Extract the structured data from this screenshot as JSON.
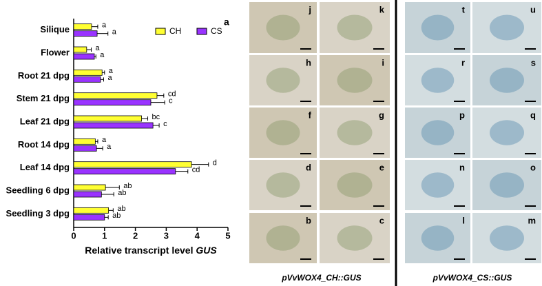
{
  "chart_data": {
    "type": "hbar",
    "panel_label": "a",
    "xlabel": "Relative transcript level",
    "xlabel_gene": "GUS",
    "categories": [
      "Silique",
      "Flower",
      "Root 21 dpg",
      "Stem 21 dpg",
      "Leaf 21 dpg",
      "Root 14 dpg",
      "Leaf 14 dpg",
      "Seedling 6 dpg",
      "Seedling 3 dpg"
    ],
    "series": [
      {
        "name": "CH",
        "color": "#ffff33",
        "values": [
          0.58,
          0.42,
          0.92,
          2.7,
          2.2,
          0.7,
          3.82,
          1.03,
          1.13
        ],
        "errors": [
          0.2,
          0.15,
          0.08,
          0.22,
          0.2,
          0.08,
          0.55,
          0.45,
          0.15
        ],
        "significance": [
          "a",
          "a",
          "a",
          "cd",
          "bc",
          "a",
          "d",
          "ab",
          "ab"
        ]
      },
      {
        "name": "CS",
        "color": "#9933ff",
        "values": [
          0.76,
          0.67,
          0.87,
          2.5,
          2.57,
          0.74,
          3.3,
          0.9,
          1.0
        ],
        "errors": [
          0.35,
          0.05,
          0.1,
          0.45,
          0.2,
          0.2,
          0.4,
          0.4,
          0.12
        ],
        "significance": [
          "a",
          "a",
          "a",
          "c",
          "c",
          "a",
          "cd",
          "ab",
          "ab"
        ]
      }
    ],
    "xlim": [
      0,
      5
    ],
    "xticks": [
      0,
      1,
      2,
      3,
      4,
      5
    ]
  },
  "photos": {
    "left": {
      "caption": "pVvWOX4_CH::GUS",
      "letters": [
        "j",
        "k",
        "h",
        "i",
        "f",
        "g",
        "d",
        "e",
        "b",
        "c"
      ]
    },
    "right": {
      "caption": "pVvWOX4_CS::GUS",
      "letters": [
        "t",
        "u",
        "r",
        "s",
        "p",
        "q",
        "n",
        "o",
        "l",
        "m"
      ]
    }
  }
}
